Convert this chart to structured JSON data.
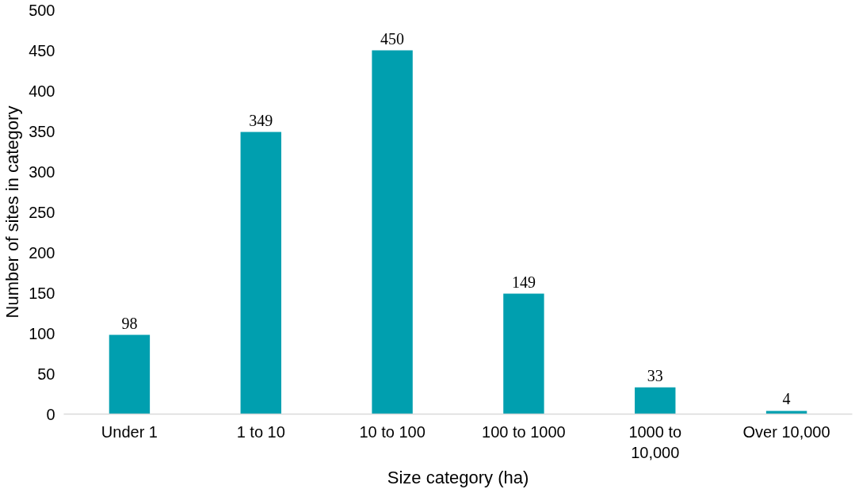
{
  "chart_data": {
    "type": "bar",
    "xlabel": "Size category (ha)",
    "ylabel": "Number of sites in category",
    "categories": [
      "Under 1",
      "1 to 10",
      "10 to 100",
      "100 to 1000",
      "1000 to 10,000",
      "Over 10,000"
    ],
    "values": [
      98,
      349,
      450,
      149,
      33,
      4
    ],
    "color": "#009faf",
    "ylim": [
      0,
      500
    ],
    "yticks": [
      0,
      50,
      100,
      150,
      200,
      250,
      300,
      350,
      400,
      450,
      500
    ],
    "grid": false,
    "data_labels": true
  }
}
